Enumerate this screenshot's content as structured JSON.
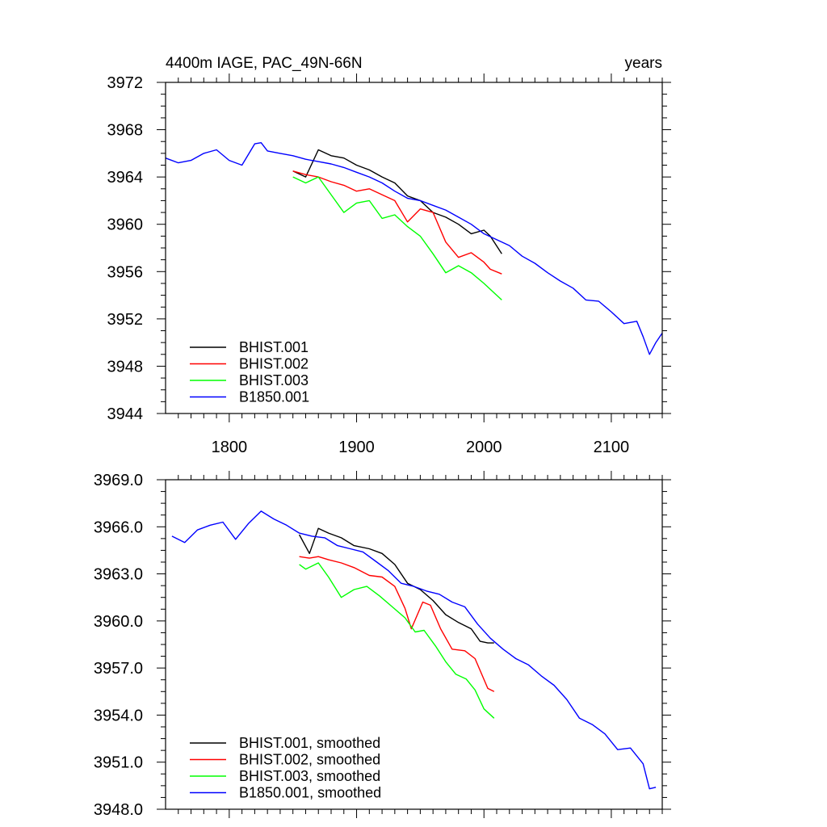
{
  "chart_data": [
    {
      "type": "line",
      "title_left": "4400m IAGE, PAC_49N-66N",
      "title_right": "years",
      "xlim": [
        1750,
        2140
      ],
      "ylim": [
        3944,
        3972
      ],
      "x_ticks": [
        1800,
        1900,
        2000,
        2100
      ],
      "x_tick_labels": [
        "1800",
        "1900",
        "2000",
        "2100"
      ],
      "y_ticks": [
        3944,
        3948,
        3952,
        3956,
        3960,
        3964,
        3968,
        3972
      ],
      "y_tick_labels": [
        "3944",
        "3948",
        "3952",
        "3956",
        "3960",
        "3964",
        "3968",
        "3972"
      ],
      "legend_position": "bottom-left",
      "series": [
        {
          "name": "BHIST.001",
          "color": "#000000",
          "x": [
            1850,
            1860,
            1870,
            1880,
            1890,
            1900,
            1910,
            1920,
            1930,
            1940,
            1950,
            1960,
            1970,
            1980,
            1990,
            2000,
            2005,
            2014
          ],
          "y": [
            3964.5,
            3964.0,
            3966.3,
            3965.8,
            3965.6,
            3965.0,
            3964.6,
            3964.0,
            3963.5,
            3962.4,
            3962.0,
            3961.0,
            3960.6,
            3960.0,
            3959.2,
            3959.5,
            3959.0,
            3957.5
          ]
        },
        {
          "name": "BHIST.002",
          "color": "#ff0000",
          "x": [
            1850,
            1860,
            1870,
            1880,
            1890,
            1900,
            1910,
            1920,
            1930,
            1940,
            1950,
            1960,
            1970,
            1980,
            1990,
            2000,
            2005,
            2014
          ],
          "y": [
            3964.5,
            3964.2,
            3964.0,
            3963.6,
            3963.3,
            3962.8,
            3963.0,
            3962.5,
            3962.0,
            3960.2,
            3961.3,
            3961.0,
            3958.5,
            3957.2,
            3957.6,
            3956.8,
            3956.2,
            3955.8
          ]
        },
        {
          "name": "BHIST.003",
          "color": "#00ff00",
          "x": [
            1850,
            1860,
            1870,
            1880,
            1890,
            1900,
            1910,
            1920,
            1930,
            1940,
            1950,
            1960,
            1970,
            1980,
            1990,
            2000,
            2005,
            2014
          ],
          "y": [
            3964.0,
            3963.5,
            3964.0,
            3962.5,
            3961.0,
            3961.8,
            3962.0,
            3960.5,
            3960.8,
            3959.8,
            3959.0,
            3957.5,
            3955.9,
            3956.5,
            3955.9,
            3955.0,
            3954.5,
            3953.6
          ]
        },
        {
          "name": "B1850.001",
          "color": "#0000ff",
          "x": [
            1750,
            1760,
            1770,
            1780,
            1790,
            1800,
            1810,
            1820,
            1825,
            1830,
            1840,
            1850,
            1860,
            1870,
            1880,
            1890,
            1900,
            1910,
            1920,
            1930,
            1940,
            1950,
            1960,
            1970,
            1980,
            1990,
            2000,
            2010,
            2020,
            2030,
            2040,
            2050,
            2060,
            2070,
            2080,
            2090,
            2100,
            2110,
            2120,
            2125,
            2130,
            2135,
            2140
          ],
          "y": [
            3965.6,
            3965.2,
            3965.4,
            3966.0,
            3966.3,
            3965.4,
            3965.0,
            3966.8,
            3966.9,
            3966.2,
            3966.0,
            3965.8,
            3965.5,
            3965.3,
            3965.1,
            3964.8,
            3964.4,
            3964.0,
            3963.5,
            3962.8,
            3962.2,
            3962.0,
            3961.6,
            3961.2,
            3960.6,
            3960.0,
            3959.2,
            3958.7,
            3958.2,
            3957.3,
            3956.7,
            3955.9,
            3955.2,
            3954.6,
            3953.6,
            3953.5,
            3952.6,
            3951.6,
            3951.8,
            3950.5,
            3949.0,
            3950.0,
            3950.8
          ]
        }
      ]
    },
    {
      "type": "line",
      "title_left": "",
      "title_right": "",
      "xlim": [
        1750,
        2140
      ],
      "ylim": [
        3948,
        3969
      ],
      "x_ticks": [
        1800,
        1900,
        2000,
        2100
      ],
      "x_tick_labels": [],
      "y_ticks": [
        3948,
        3951,
        3954,
        3957,
        3960,
        3963,
        3966,
        3969
      ],
      "y_tick_labels": [
        "3948.0",
        "3951.0",
        "3954.0",
        "3957.0",
        "3960.0",
        "3963.0",
        "3966.0",
        "3969.0"
      ],
      "legend_position": "bottom-left",
      "series": [
        {
          "name": "BHIST.001, smoothed",
          "color": "#000000",
          "x": [
            1855,
            1863,
            1870,
            1878,
            1888,
            1898,
            1910,
            1920,
            1930,
            1940,
            1950,
            1960,
            1970,
            1980,
            1990,
            1997,
            2003,
            2008
          ],
          "y": [
            3965.5,
            3964.3,
            3965.9,
            3965.6,
            3965.3,
            3964.8,
            3964.6,
            3964.3,
            3963.6,
            3962.4,
            3962.0,
            3961.3,
            3960.4,
            3959.9,
            3959.5,
            3958.7,
            3958.6,
            3958.6
          ]
        },
        {
          "name": "BHIST.002, smoothed",
          "color": "#ff0000",
          "x": [
            1855,
            1863,
            1870,
            1878,
            1888,
            1898,
            1910,
            1920,
            1930,
            1938,
            1943,
            1952,
            1958,
            1966,
            1975,
            1985,
            1993,
            2003,
            2008
          ],
          "y": [
            3964.1,
            3964.0,
            3964.1,
            3963.9,
            3963.7,
            3963.4,
            3962.9,
            3962.8,
            3962.2,
            3960.8,
            3959.5,
            3961.2,
            3961.0,
            3959.5,
            3958.2,
            3958.1,
            3957.6,
            3955.7,
            3955.5
          ]
        },
        {
          "name": "BHIST.003, smoothed",
          "color": "#00ff00",
          "x": [
            1855,
            1860,
            1870,
            1878,
            1888,
            1898,
            1908,
            1918,
            1928,
            1938,
            1946,
            1953,
            1962,
            1970,
            1978,
            1986,
            1993,
            2000,
            2008
          ],
          "y": [
            3963.6,
            3963.3,
            3963.7,
            3962.8,
            3961.5,
            3962.0,
            3962.2,
            3961.6,
            3960.9,
            3960.2,
            3959.3,
            3959.4,
            3958.4,
            3957.4,
            3956.6,
            3956.3,
            3955.6,
            3954.4,
            3953.8
          ]
        },
        {
          "name": "B1850.001, smoothed",
          "color": "#0000ff",
          "x": [
            1755,
            1765,
            1775,
            1785,
            1795,
            1805,
            1815,
            1825,
            1835,
            1845,
            1855,
            1865,
            1875,
            1885,
            1895,
            1905,
            1915,
            1925,
            1935,
            1945,
            1955,
            1965,
            1975,
            1985,
            1995,
            2005,
            2015,
            2025,
            2035,
            2045,
            2055,
            2065,
            2075,
            2085,
            2095,
            2105,
            2115,
            2125,
            2130,
            2135
          ],
          "y": [
            3965.4,
            3965.0,
            3965.8,
            3966.1,
            3966.3,
            3965.2,
            3966.2,
            3967.0,
            3966.5,
            3966.1,
            3965.6,
            3965.4,
            3965.3,
            3964.8,
            3964.6,
            3964.4,
            3963.8,
            3963.2,
            3962.4,
            3962.2,
            3961.9,
            3961.7,
            3961.2,
            3960.9,
            3959.8,
            3958.9,
            3958.2,
            3957.6,
            3957.2,
            3956.5,
            3955.9,
            3955.0,
            3953.8,
            3953.4,
            3952.8,
            3951.8,
            3951.9,
            3950.9,
            3949.3,
            3949.4
          ]
        }
      ]
    }
  ]
}
